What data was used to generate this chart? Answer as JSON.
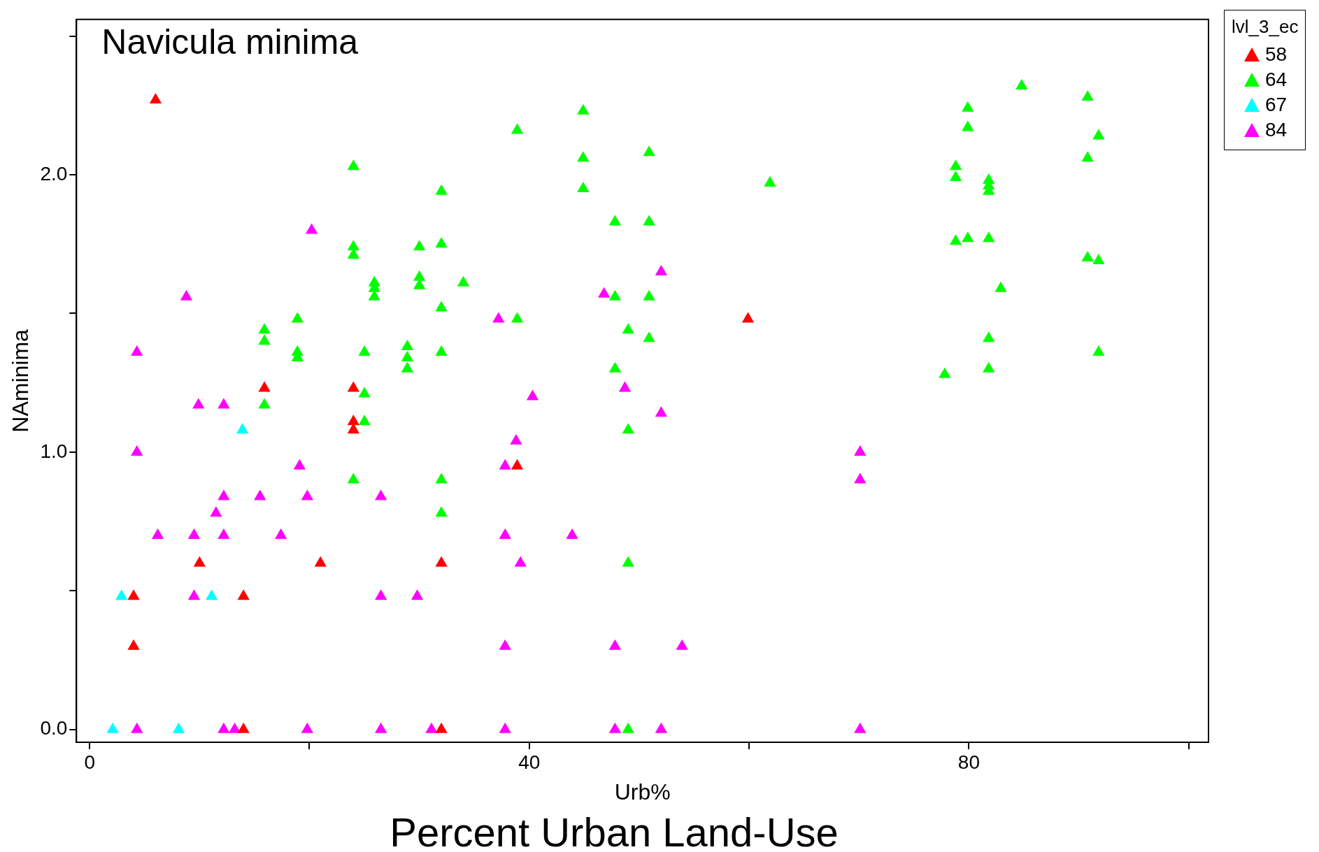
{
  "chart_data": {
    "type": "scatter",
    "title": "Navicula minima",
    "xlabel": "Urb%",
    "ylabel": "NAminima",
    "legend_title": "lvl_3_ec",
    "annotations": [
      "Percent Urban Land-Use"
    ],
    "xlim": [
      -1.2,
      101.8
    ],
    "ylim": [
      -0.046,
      2.56
    ],
    "xticks": [
      0,
      {
        "value": 20,
        "label": null
      },
      40,
      {
        "value": 60,
        "label": null
      },
      80,
      {
        "value": 100,
        "label": null
      }
    ],
    "yticks": [
      {
        "value": 0,
        "label": "0.0"
      },
      {
        "value": 0.5,
        "label": null
      },
      {
        "value": 1,
        "label": "1.0"
      },
      {
        "value": 1.5,
        "label": null
      },
      {
        "value": 2,
        "label": "2.0"
      },
      {
        "value": 2.5,
        "label": null
      }
    ],
    "grid": false,
    "legend": "top right",
    "marker": "triangle",
    "series": [
      {
        "name": "58",
        "color": "#ff0000",
        "x": [
          6.0,
          15.9,
          24.0,
          24.0,
          24.0,
          59.9,
          38.9,
          10.0,
          21.0,
          32.0,
          4.0,
          14.0,
          4.0,
          14.0,
          32.0
        ],
        "values": [
          2.27,
          1.23,
          1.23,
          1.11,
          1.08,
          1.48,
          0.95,
          0.6,
          0.6,
          0.6,
          0.48,
          0.48,
          0.3,
          0,
          0
        ]
      },
      {
        "name": "64",
        "color": "#00ff00",
        "x": [
          15.9,
          15.9,
          15.9,
          18.9,
          18.9,
          18.9,
          24.0,
          24.0,
          24.0,
          24.0,
          25.0,
          25.0,
          25.0,
          25.9,
          25.9,
          25.9,
          28.9,
          28.9,
          28.9,
          30.0,
          30.0,
          30.0,
          32.0,
          32.0,
          32.0,
          32.0,
          32.0,
          32.0,
          34.0,
          38.9,
          38.9,
          44.9,
          44.9,
          44.9,
          47.8,
          47.8,
          47.8,
          49.0,
          49.0,
          49.0,
          49.0,
          50.9,
          50.9,
          50.9,
          50.9,
          61.9,
          77.8,
          78.8,
          78.8,
          78.8,
          79.9,
          79.9,
          79.9,
          81.8,
          81.8,
          81.8,
          81.8,
          81.8,
          81.8,
          82.9,
          84.8,
          90.8,
          90.8,
          90.8,
          91.8,
          91.8,
          91.8
        ],
        "values": [
          1.44,
          1.4,
          1.17,
          1.48,
          1.36,
          1.34,
          2.03,
          1.74,
          1.71,
          0.9,
          1.36,
          1.21,
          1.11,
          1.61,
          1.59,
          1.56,
          1.38,
          1.34,
          1.3,
          1.74,
          1.63,
          1.6,
          1.94,
          1.75,
          1.52,
          1.36,
          0.9,
          0.78,
          1.61,
          2.16,
          1.48,
          2.23,
          2.06,
          1.95,
          1.83,
          1.56,
          1.3,
          1.44,
          1.08,
          0.6,
          0,
          2.08,
          1.83,
          1.56,
          1.41,
          1.97,
          1.28,
          2.03,
          1.99,
          1.76,
          2.24,
          2.17,
          1.77,
          1.98,
          1.96,
          1.94,
          1.77,
          1.41,
          1.3,
          1.59,
          2.32,
          2.28,
          2.06,
          1.7,
          2.14,
          1.69,
          1.36
        ]
      },
      {
        "name": "67",
        "color": "#00ffff",
        "x": [
          2.1,
          8.1,
          2.9,
          11.1,
          13.9
        ],
        "values": [
          0,
          0,
          0.48,
          0.48,
          1.08
        ]
      },
      {
        "name": "84",
        "color": "#ff00ff",
        "x": [
          4.3,
          4.3,
          8.8,
          9.9,
          12.2,
          20.2,
          6.2,
          9.5,
          12.2,
          17.4,
          11.5,
          12.2,
          15.5,
          19.1,
          19.8,
          26.5,
          9.5,
          26.5,
          29.8,
          37.2,
          37.8,
          38.8,
          40.3,
          37.8,
          39.2,
          43.9,
          46.8,
          48.7,
          52.0,
          52.0,
          37.8,
          47.8,
          53.9,
          70.1,
          70.1,
          4.3,
          12.2,
          13.2,
          19.8,
          26.5,
          31.1,
          37.8,
          47.8,
          52.0,
          70.1
        ],
        "values": [
          1.36,
          1.0,
          1.56,
          1.17,
          1.17,
          1.8,
          0.7,
          0.7,
          0.7,
          0.7,
          0.78,
          0.84,
          0.84,
          0.95,
          0.84,
          0.84,
          0.48,
          0.48,
          0.48,
          1.48,
          0.95,
          1.04,
          1.2,
          0.7,
          0.6,
          0.7,
          1.57,
          1.23,
          1.65,
          1.14,
          0.3,
          0.3,
          0.3,
          1.0,
          0.9,
          0,
          0,
          0,
          0,
          0,
          0,
          0,
          0,
          0,
          0
        ]
      }
    ]
  }
}
